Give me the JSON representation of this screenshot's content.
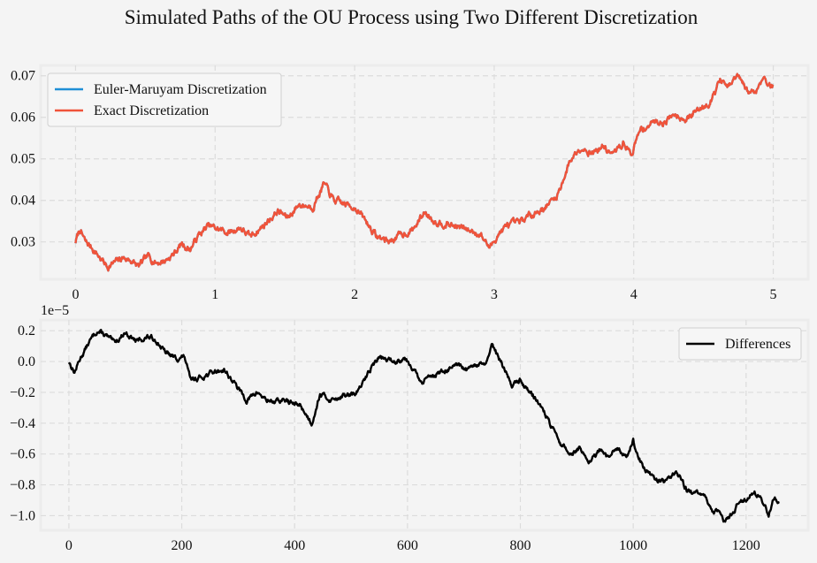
{
  "figure": {
    "title": "Simulated Paths of the OU Process using Two Different Discretization",
    "background": "#f4f4f4",
    "grid_color": "#dcdcdc"
  },
  "chart_data": [
    {
      "type": "line",
      "xlim": [
        -0.25,
        5.25
      ],
      "ylim": [
        0.021,
        0.0725
      ],
      "xticks": [
        0,
        1,
        2,
        3,
        4,
        5
      ],
      "yticks": [
        0.03,
        0.04,
        0.05,
        0.06,
        0.07
      ],
      "ytick_labels": [
        "0.03",
        "0.04",
        "0.05",
        "0.06",
        "0.07"
      ],
      "grid": true,
      "legend_position": "top-left",
      "x_range": [
        0,
        5
      ],
      "n_points": 1260,
      "series": [
        {
          "name": "Euler-Maruyam Discretization",
          "color": "#1f8fd6"
        },
        {
          "name": "Exact Discretization",
          "color": "#f0533a"
        }
      ],
      "path_keypoints": [
        [
          0.0,
          0.03
        ],
        [
          0.03,
          0.033
        ],
        [
          0.07,
          0.03
        ],
        [
          0.12,
          0.0285
        ],
        [
          0.18,
          0.026
        ],
        [
          0.23,
          0.024
        ],
        [
          0.28,
          0.025
        ],
        [
          0.34,
          0.0262
        ],
        [
          0.4,
          0.0255
        ],
        [
          0.45,
          0.024
        ],
        [
          0.52,
          0.0265
        ],
        [
          0.58,
          0.025
        ],
        [
          0.64,
          0.0255
        ],
        [
          0.7,
          0.027
        ],
        [
          0.76,
          0.0295
        ],
        [
          0.82,
          0.0282
        ],
        [
          0.88,
          0.0315
        ],
        [
          0.95,
          0.0338
        ],
        [
          1.05,
          0.0328
        ],
        [
          1.1,
          0.0322
        ],
        [
          1.18,
          0.0335
        ],
        [
          1.25,
          0.0312
        ],
        [
          1.35,
          0.034
        ],
        [
          1.45,
          0.0375
        ],
        [
          1.52,
          0.0358
        ],
        [
          1.6,
          0.039
        ],
        [
          1.7,
          0.0385
        ],
        [
          1.78,
          0.044
        ],
        [
          1.85,
          0.04
        ],
        [
          1.93,
          0.039
        ],
        [
          2.0,
          0.0385
        ],
        [
          2.08,
          0.035
        ],
        [
          2.16,
          0.0312
        ],
        [
          2.25,
          0.0302
        ],
        [
          2.32,
          0.0315
        ],
        [
          2.42,
          0.033
        ],
        [
          2.5,
          0.0372
        ],
        [
          2.58,
          0.035
        ],
        [
          2.7,
          0.034
        ],
        [
          2.8,
          0.033
        ],
        [
          2.9,
          0.032
        ],
        [
          2.97,
          0.0285
        ],
        [
          3.03,
          0.032
        ],
        [
          3.1,
          0.034
        ],
        [
          3.18,
          0.0345
        ],
        [
          3.28,
          0.037
        ],
        [
          3.35,
          0.038
        ],
        [
          3.45,
          0.041
        ],
        [
          3.55,
          0.05
        ],
        [
          3.62,
          0.053
        ],
        [
          3.7,
          0.0515
        ],
        [
          3.78,
          0.053
        ],
        [
          3.85,
          0.051
        ],
        [
          3.93,
          0.054
        ],
        [
          3.98,
          0.051
        ],
        [
          4.05,
          0.057
        ],
        [
          4.15,
          0.059
        ],
        [
          4.22,
          0.059
        ],
        [
          4.3,
          0.061
        ],
        [
          4.38,
          0.0595
        ],
        [
          4.45,
          0.0615
        ],
        [
          4.55,
          0.064
        ],
        [
          4.62,
          0.069
        ],
        [
          4.68,
          0.067
        ],
        [
          4.74,
          0.07
        ],
        [
          4.82,
          0.066
        ],
        [
          4.88,
          0.0665
        ],
        [
          4.93,
          0.07
        ],
        [
          4.97,
          0.068
        ],
        [
          5.0,
          0.0672
        ]
      ]
    },
    {
      "type": "line",
      "xlim": [
        -50,
        1310
      ],
      "ylim": [
        -1.095,
        0.27
      ],
      "xticks": [
        0,
        200,
        400,
        600,
        800,
        1000,
        1200
      ],
      "yticks": [
        0.2,
        0.0,
        -0.2,
        -0.4,
        -0.6,
        -0.8,
        -1.0
      ],
      "ytick_labels": [
        "0.2",
        "0.0",
        "−0.2",
        "−0.4",
        "−0.6",
        "−0.8",
        "−1.0"
      ],
      "offset_label": "1e−5",
      "grid": true,
      "legend_position": "top-right",
      "x_range": [
        0,
        1259
      ],
      "n_points": 1260,
      "series": [
        {
          "name": "Differences",
          "color": "#000000"
        }
      ],
      "path_keypoints": [
        [
          0,
          0.0
        ],
        [
          10,
          -0.07
        ],
        [
          20,
          0.02
        ],
        [
          35,
          0.12
        ],
        [
          50,
          0.2
        ],
        [
          65,
          0.17
        ],
        [
          80,
          0.12
        ],
        [
          100,
          0.19
        ],
        [
          120,
          0.13
        ],
        [
          140,
          0.16
        ],
        [
          155,
          0.14
        ],
        [
          170,
          0.06
        ],
        [
          190,
          0.02
        ],
        [
          205,
          0.03
        ],
        [
          215,
          -0.12
        ],
        [
          235,
          -0.1
        ],
        [
          255,
          -0.07
        ],
        [
          275,
          -0.05
        ],
        [
          295,
          -0.15
        ],
        [
          315,
          -0.25
        ],
        [
          335,
          -0.2
        ],
        [
          350,
          -0.25
        ],
        [
          370,
          -0.26
        ],
        [
          385,
          -0.25
        ],
        [
          400,
          -0.28
        ],
        [
          410,
          -0.28
        ],
        [
          430,
          -0.4
        ],
        [
          445,
          -0.21
        ],
        [
          465,
          -0.25
        ],
        [
          485,
          -0.22
        ],
        [
          505,
          -0.22
        ],
        [
          520,
          -0.15
        ],
        [
          535,
          -0.04
        ],
        [
          550,
          0.03
        ],
        [
          565,
          0.01
        ],
        [
          580,
          0.0
        ],
        [
          595,
          0.03
        ],
        [
          610,
          -0.04
        ],
        [
          625,
          -0.15
        ],
        [
          640,
          -0.08
        ],
        [
          655,
          -0.08
        ],
        [
          670,
          -0.05
        ],
        [
          690,
          -0.03
        ],
        [
          705,
          -0.06
        ],
        [
          720,
          -0.03
        ],
        [
          740,
          -0.01
        ],
        [
          750,
          0.1
        ],
        [
          765,
          0.0
        ],
        [
          785,
          -0.15
        ],
        [
          800,
          -0.12
        ],
        [
          815,
          -0.19
        ],
        [
          830,
          -0.25
        ],
        [
          845,
          -0.35
        ],
        [
          860,
          -0.46
        ],
        [
          875,
          -0.55
        ],
        [
          890,
          -0.6
        ],
        [
          905,
          -0.56
        ],
        [
          920,
          -0.67
        ],
        [
          940,
          -0.58
        ],
        [
          955,
          -0.63
        ],
        [
          970,
          -0.56
        ],
        [
          990,
          -0.61
        ],
        [
          1000,
          -0.51
        ],
        [
          1010,
          -0.63
        ],
        [
          1025,
          -0.72
        ],
        [
          1040,
          -0.76
        ],
        [
          1055,
          -0.78
        ],
        [
          1065,
          -0.74
        ],
        [
          1075,
          -0.72
        ],
        [
          1085,
          -0.77
        ],
        [
          1095,
          -0.83
        ],
        [
          1110,
          -0.86
        ],
        [
          1125,
          -0.86
        ],
        [
          1140,
          -0.97
        ],
        [
          1150,
          -0.98
        ],
        [
          1160,
          -1.03
        ],
        [
          1180,
          -0.96
        ],
        [
          1190,
          -0.89
        ],
        [
          1200,
          -0.89
        ],
        [
          1215,
          -0.84
        ],
        [
          1230,
          -0.91
        ],
        [
          1240,
          -0.99
        ],
        [
          1250,
          -0.88
        ],
        [
          1259,
          -0.91
        ]
      ]
    }
  ]
}
